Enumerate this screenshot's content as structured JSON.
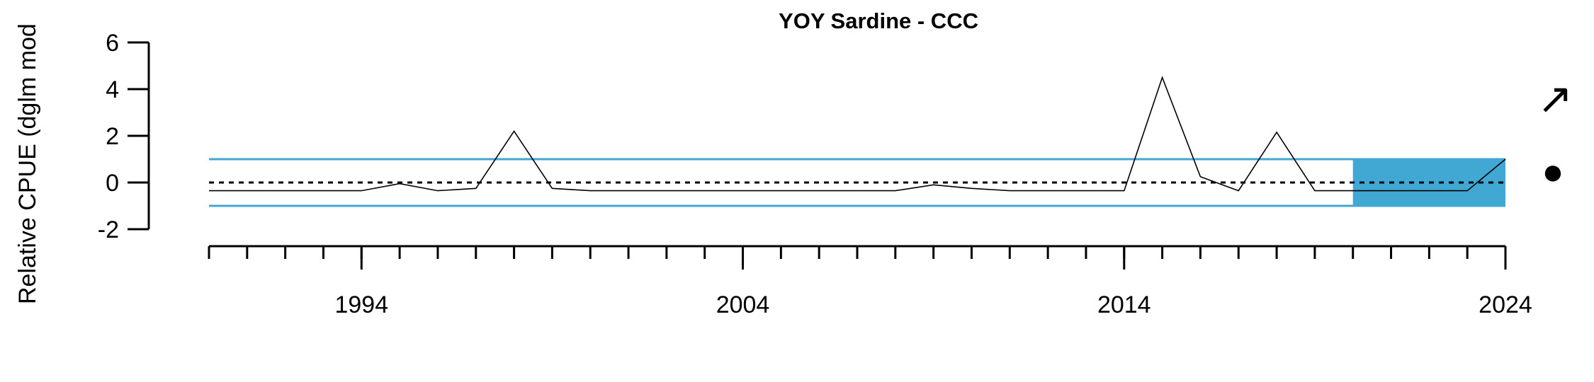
{
  "chart_data": {
    "type": "line",
    "title": "YOY Sardine - CCC",
    "ylabel": "Relative CPUE (dglm mod",
    "xlabel": "",
    "ylim": [
      -2,
      6
    ],
    "xlim": [
      1990,
      2024
    ],
    "y_ticks": [
      -2,
      0,
      2,
      4,
      6
    ],
    "y_tick_labels": [
      "-2",
      "0",
      "2",
      "4",
      "6"
    ],
    "x_tick_labels": [
      "1994",
      "2004",
      "2014",
      "2024"
    ],
    "x_labeled_ticks": [
      1994,
      2004,
      2014,
      2024
    ],
    "x_minor_ticks": [
      1990,
      1991,
      1992,
      1993,
      1994,
      1995,
      1996,
      1997,
      1998,
      1999,
      2000,
      2001,
      2002,
      2003,
      2004,
      2005,
      2006,
      2007,
      2008,
      2009,
      2010,
      2011,
      2012,
      2013,
      2014,
      2015,
      2016,
      2017,
      2018,
      2019,
      2020,
      2021,
      2022,
      2023,
      2024
    ],
    "grid": false,
    "reference_lines": {
      "mean": 0,
      "upper_sd": 1,
      "lower_sd": -1
    },
    "shaded_period": [
      2020,
      2024
    ],
    "trend_symbol": "↗",
    "status_symbol": "●",
    "colors": {
      "series": "#000000",
      "sd_lines": "#41a8d4",
      "shade": "#41a8d4",
      "mean_line": "#000000"
    },
    "series": [
      {
        "x": [
          1990,
          1991,
          1992,
          1993,
          1994,
          1995,
          1996,
          1997,
          1998,
          1999,
          2000,
          2001,
          2002,
          2003,
          2004,
          2005,
          2006,
          2007,
          2008,
          2009,
          2010,
          2011,
          2012,
          2013,
          2014,
          2015,
          2016,
          2017,
          2018,
          2019,
          2020,
          2021,
          2022,
          2023,
          2024
        ],
        "values": [
          -0.35,
          -0.35,
          -0.35,
          -0.35,
          -0.35,
          -0.05,
          -0.35,
          -0.25,
          2.2,
          -0.25,
          -0.35,
          -0.35,
          -0.35,
          -0.35,
          -0.35,
          -0.35,
          -0.35,
          -0.35,
          -0.35,
          -0.1,
          -0.25,
          -0.35,
          -0.35,
          -0.35,
          -0.35,
          4.5,
          0.25,
          -0.35,
          2.15,
          -0.35,
          -0.35,
          -0.35,
          -0.35,
          -0.35,
          1.0
        ]
      }
    ]
  }
}
